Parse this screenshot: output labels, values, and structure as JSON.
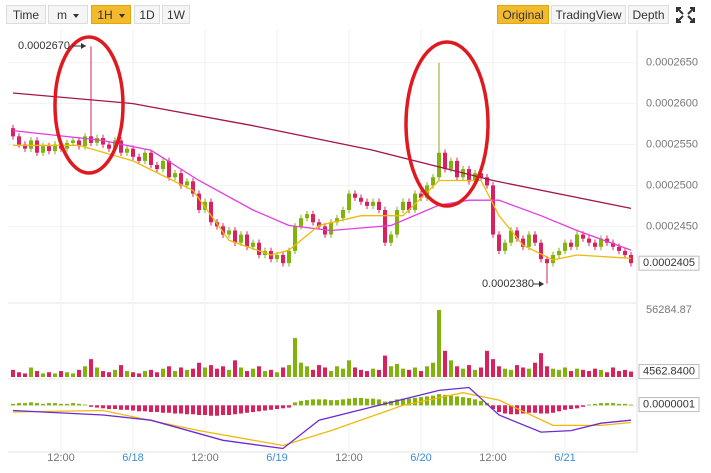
{
  "toolbar": {
    "left": [
      "Time",
      "m",
      "1H",
      "1D",
      "1W"
    ],
    "right": [
      "Original",
      "TradingView",
      "Depth"
    ]
  },
  "chart_data": {
    "type": "candlestick",
    "up_color": "#82b20c",
    "down_color": "#d9215e",
    "xlim": [
      -0.5,
      103.5
    ],
    "xticks": [
      {
        "value": 8,
        "label": "12:00"
      },
      {
        "value": 20,
        "label": "6/18"
      },
      {
        "value": 32,
        "label": "12:00"
      },
      {
        "value": 44,
        "label": "6/19"
      },
      {
        "value": 56,
        "label": "12:00"
      },
      {
        "value": 68,
        "label": "6/20"
      },
      {
        "value": 80,
        "label": "12:00"
      },
      {
        "value": 92,
        "label": "6/21"
      }
    ],
    "ylim": [
      0.000236,
      0.000269
    ],
    "yticks": [
      {
        "value": 0.000265,
        "label": "0.0002650"
      },
      {
        "value": 0.00026,
        "label": "0.0002600"
      },
      {
        "value": 0.000255,
        "label": "0.0002550"
      },
      {
        "value": 0.00025,
        "label": "0.0002500"
      },
      {
        "value": 0.000245,
        "label": "0.0002450"
      }
    ],
    "annotations": [
      "0.0002670",
      "0.0002380"
    ],
    "candles": [
      [
        0.000257,
        0.0002574,
        0.0002556,
        0.000256
      ],
      [
        0.000256,
        0.0002564,
        0.0002546,
        0.000255
      ],
      [
        0.000255,
        0.0002554,
        0.0002541,
        0.0002545
      ],
      [
        0.0002545,
        0.0002559,
        0.0002541,
        0.0002555
      ],
      [
        0.0002555,
        0.0002559,
        0.0002536,
        0.000254
      ],
      [
        0.000254,
        0.0002552,
        0.0002536,
        0.0002548
      ],
      [
        0.0002548,
        0.0002552,
        0.0002538,
        0.0002542
      ],
      [
        0.0002542,
        0.0002554,
        0.0002538,
        0.000255
      ],
      [
        0.000255,
        0.0002554,
        0.0002541,
        0.0002545
      ],
      [
        0.0002545,
        0.0002556,
        0.0002541,
        0.0002552
      ],
      [
        0.0002552,
        0.0002559,
        0.0002548,
        0.0002555
      ],
      [
        0.0002555,
        0.0002559,
        0.0002544,
        0.0002548
      ],
      [
        0.0002548,
        0.0002564,
        0.0002544,
        0.000256
      ],
      [
        0.000256,
        0.000267,
        0.0002548,
        0.0002552
      ],
      [
        0.0002552,
        0.0002562,
        0.0002548,
        0.0002558
      ],
      [
        0.0002558,
        0.0002562,
        0.0002546,
        0.000255
      ],
      [
        0.000255,
        0.0002554,
        0.0002541,
        0.0002545
      ],
      [
        0.0002545,
        0.0002559,
        0.0002541,
        0.0002555
      ],
      [
        0.0002555,
        0.0002559,
        0.0002536,
        0.000254
      ],
      [
        0.000254,
        0.0002549,
        0.0002536,
        0.0002545
      ],
      [
        0.0002545,
        0.0002549,
        0.0002531,
        0.0002535
      ],
      [
        0.0002535,
        0.0002539,
        0.0002526,
        0.000253
      ],
      [
        0.000253,
        0.0002544,
        0.0002526,
        0.000254
      ],
      [
        0.000254,
        0.0002544,
        0.0002521,
        0.0002525
      ],
      [
        0.0002525,
        0.0002529,
        0.0002516,
        0.000252
      ],
      [
        0.000252,
        0.0002534,
        0.0002516,
        0.000253
      ],
      [
        0.000253,
        0.0002534,
        0.0002506,
        0.000251
      ],
      [
        0.000251,
        0.0002519,
        0.0002506,
        0.0002515
      ],
      [
        0.0002515,
        0.0002519,
        0.0002496,
        0.00025
      ],
      [
        0.00025,
        0.0002509,
        0.0002496,
        0.0002505
      ],
      [
        0.0002505,
        0.0002509,
        0.0002486,
        0.000249
      ],
      [
        0.000249,
        0.0002494,
        0.0002466,
        0.000247
      ],
      [
        0.000247,
        0.0002484,
        0.0002466,
        0.000248
      ],
      [
        0.000248,
        0.0002484,
        0.0002451,
        0.0002455
      ],
      [
        0.0002455,
        0.0002459,
        0.0002446,
        0.000245
      ],
      [
        0.000245,
        0.0002454,
        0.0002436,
        0.000244
      ],
      [
        0.000244,
        0.0002449,
        0.0002436,
        0.0002445
      ],
      [
        0.0002445,
        0.0002449,
        0.0002426,
        0.000243
      ],
      [
        0.000243,
        0.0002444,
        0.0002426,
        0.000244
      ],
      [
        0.000244,
        0.0002444,
        0.0002421,
        0.0002425
      ],
      [
        0.0002425,
        0.0002434,
        0.0002421,
        0.000243
      ],
      [
        0.000243,
        0.0002434,
        0.0002411,
        0.0002415
      ],
      [
        0.0002415,
        0.0002424,
        0.0002411,
        0.000242
      ],
      [
        0.000242,
        0.0002424,
        0.0002406,
        0.000241
      ],
      [
        0.000241,
        0.0002419,
        0.0002406,
        0.0002415
      ],
      [
        0.0002415,
        0.0002419,
        0.0002401,
        0.0002405
      ],
      [
        0.0002405,
        0.0002424,
        0.0002401,
        0.000242
      ],
      [
        0.000242,
        0.0002454,
        0.0002416,
        0.000245
      ],
      [
        0.000245,
        0.0002464,
        0.0002446,
        0.000246
      ],
      [
        0.000246,
        0.0002469,
        0.0002456,
        0.0002465
      ],
      [
        0.0002465,
        0.0002469,
        0.0002451,
        0.0002455
      ],
      [
        0.0002455,
        0.0002459,
        0.0002446,
        0.000245
      ],
      [
        0.000245,
        0.0002454,
        0.0002436,
        0.000244
      ],
      [
        0.000244,
        0.0002459,
        0.0002436,
        0.0002455
      ],
      [
        0.0002455,
        0.0002464,
        0.0002451,
        0.000246
      ],
      [
        0.000246,
        0.0002474,
        0.0002456,
        0.000247
      ],
      [
        0.000247,
        0.0002494,
        0.0002466,
        0.000249
      ],
      [
        0.000249,
        0.0002494,
        0.0002481,
        0.0002485
      ],
      [
        0.0002485,
        0.0002489,
        0.0002476,
        0.000248
      ],
      [
        0.000248,
        0.0002484,
        0.0002471,
        0.0002475
      ],
      [
        0.0002475,
        0.0002484,
        0.0002471,
        0.000248
      ],
      [
        0.000248,
        0.0002484,
        0.0002466,
        0.000247
      ],
      [
        0.000247,
        0.0002474,
        0.0002426,
        0.000243
      ],
      [
        0.000243,
        0.0002444,
        0.0002426,
        0.000244
      ],
      [
        0.000244,
        0.0002474,
        0.0002436,
        0.000247
      ],
      [
        0.000247,
        0.0002484,
        0.0002466,
        0.000248
      ],
      [
        0.000248,
        0.0002484,
        0.0002466,
        0.000247
      ],
      [
        0.000247,
        0.0002494,
        0.0002466,
        0.000249
      ],
      [
        0.000249,
        0.0002494,
        0.0002481,
        0.0002485
      ],
      [
        0.0002485,
        0.0002504,
        0.0002481,
        0.00025
      ],
      [
        0.00025,
        0.0002514,
        0.0002496,
        0.000251
      ],
      [
        0.000251,
        0.000265,
        0.0002506,
        0.000254
      ],
      [
        0.000254,
        0.0002544,
        0.0002516,
        0.000252
      ],
      [
        0.000252,
        0.0002534,
        0.0002516,
        0.000253
      ],
      [
        0.000253,
        0.0002534,
        0.0002506,
        0.000251
      ],
      [
        0.000251,
        0.0002524,
        0.0002506,
        0.000252
      ],
      [
        0.000252,
        0.0002524,
        0.0002501,
        0.0002505
      ],
      [
        0.0002505,
        0.0002519,
        0.0002501,
        0.0002515
      ],
      [
        0.0002515,
        0.0002519,
        0.0002506,
        0.000251
      ],
      [
        0.000251,
        0.0002514,
        0.0002496,
        0.00025
      ],
      [
        0.00025,
        0.0002504,
        0.0002436,
        0.000244
      ],
      [
        0.000244,
        0.0002444,
        0.0002416,
        0.000242
      ],
      [
        0.000242,
        0.0002434,
        0.0002416,
        0.000243
      ],
      [
        0.000243,
        0.0002449,
        0.0002426,
        0.0002445
      ],
      [
        0.0002445,
        0.0002449,
        0.0002431,
        0.0002435
      ],
      [
        0.0002435,
        0.0002439,
        0.0002421,
        0.0002425
      ],
      [
        0.0002425,
        0.0002444,
        0.0002421,
        0.000244
      ],
      [
        0.000244,
        0.0002444,
        0.0002426,
        0.000243
      ],
      [
        0.000243,
        0.0002434,
        0.0002406,
        0.000241
      ],
      [
        0.000241,
        0.0002414,
        0.000238,
        0.0002405
      ],
      [
        0.0002405,
        0.0002419,
        0.0002401,
        0.0002415
      ],
      [
        0.0002415,
        0.0002424,
        0.0002411,
        0.000242
      ],
      [
        0.000242,
        0.0002434,
        0.0002416,
        0.000243
      ],
      [
        0.000243,
        0.0002434,
        0.0002421,
        0.0002425
      ],
      [
        0.0002425,
        0.0002444,
        0.0002421,
        0.000244
      ],
      [
        0.000244,
        0.0002444,
        0.0002431,
        0.0002435
      ],
      [
        0.0002435,
        0.0002439,
        0.0002426,
        0.000243
      ],
      [
        0.000243,
        0.0002434,
        0.0002421,
        0.0002425
      ],
      [
        0.0002425,
        0.0002439,
        0.0002421,
        0.0002435
      ],
      [
        0.0002435,
        0.0002439,
        0.0002426,
        0.000243
      ],
      [
        0.000243,
        0.0002434,
        0.0002421,
        0.0002425
      ],
      [
        0.0002425,
        0.0002429,
        0.0002416,
        0.000242
      ],
      [
        0.000242,
        0.0002424,
        0.0002411,
        0.0002415
      ],
      [
        0.0002415,
        0.0002419,
        0.0002401,
        0.0002405
      ]
    ],
    "lines": [
      {
        "color": "#a3154f",
        "x": [
          0,
          20,
          40,
          60,
          80,
          103
        ],
        "values": [
          0.0002613,
          0.00026,
          0.0002573,
          0.0002543,
          0.0002506,
          0.0002472
        ]
      },
      {
        "color": "#e23de0",
        "x": [
          0,
          15,
          23,
          31,
          40,
          46,
          53,
          63,
          71,
          76,
          81,
          88,
          94,
          103
        ],
        "values": [
          0.0002567,
          0.0002555,
          0.0002543,
          0.0002506,
          0.000247,
          0.0002451,
          0.0002445,
          0.0002451,
          0.0002476,
          0.0002482,
          0.0002482,
          0.0002463,
          0.0002445,
          0.0002421
        ]
      },
      {
        "color": "#f0b90b",
        "x": [
          0,
          11,
          20,
          30,
          36,
          43,
          46,
          51,
          58,
          65,
          71,
          78,
          81,
          85,
          90,
          94,
          103
        ],
        "values": [
          0.0002549,
          0.0002549,
          0.000253,
          0.0002494,
          0.0002433,
          0.0002415,
          0.0002421,
          0.0002451,
          0.0002463,
          0.0002463,
          0.0002506,
          0.0002506,
          0.0002463,
          0.0002427,
          0.0002409,
          0.0002415,
          0.0002411
        ]
      }
    ],
    "volume": {
      "ylim": [
        0,
        56284.87
      ],
      "yticks": [
        56284.87
      ],
      "last_label": "4562.8400",
      "values": [
        6000,
        4000,
        3000,
        8000,
        5000,
        3000,
        4000,
        3000,
        5000,
        4000,
        3000,
        6000,
        9000,
        15000,
        8000,
        5000,
        4000,
        6000,
        10000,
        5000,
        4000,
        3000,
        5000,
        6000,
        4000,
        7000,
        9000,
        5000,
        8000,
        6000,
        7000,
        12000,
        8000,
        10000,
        7000,
        9000,
        6000,
        14000,
        8000,
        5000,
        7000,
        9000,
        5000,
        6000,
        4000,
        8000,
        10000,
        32700,
        12000,
        9000,
        6000,
        10000,
        8000,
        5000,
        9000,
        7000,
        14000,
        8000,
        6000,
        5000,
        7000,
        6000,
        18000,
        9000,
        11000,
        7000,
        6000,
        8000,
        5000,
        9000,
        12000,
        56284.87,
        22000,
        14000,
        9000,
        7000,
        10000,
        6000,
        8000,
        22000,
        15000,
        9000,
        7000,
        6000,
        10000,
        8000,
        7000,
        12000,
        20000,
        9000,
        7000,
        6000,
        8000,
        5000,
        7000,
        6000,
        5000,
        7000,
        6000,
        4000,
        8000,
        5000,
        6000,
        4562.84
      ]
    },
    "macd": {
      "ylim": [
        -6e-07,
        3e-07
      ],
      "last_label": "0.0000001",
      "histogram": [
        2e-08,
        3e-08,
        3e-08,
        4e-08,
        3e-08,
        2e-08,
        3e-08,
        3e-08,
        2e-08,
        2e-08,
        3e-08,
        2e-08,
        1e-08,
        -2e-08,
        -3e-08,
        -4e-08,
        -5e-08,
        -5e-08,
        -6e-08,
        -6e-08,
        -7e-08,
        -8e-08,
        -8e-08,
        -9e-08,
        -9e-08,
        -1e-07,
        -1e-07,
        -1.1e-07,
        -1.1e-07,
        -1.2e-07,
        -1.2e-07,
        -1.3e-07,
        -1.3e-07,
        -1.4e-07,
        -1.4e-07,
        -1.3e-07,
        -1.3e-07,
        -1.2e-07,
        -1.1e-07,
        -1e-07,
        -9e-08,
        -8e-08,
        -7e-08,
        -6e-08,
        -5e-08,
        -4e-08,
        -3e-08,
        4e-08,
        6e-08,
        7e-08,
        8e-08,
        8e-08,
        8e-08,
        7e-08,
        7e-08,
        8e-08,
        9e-08,
        1e-07,
        1e-07,
        9e-08,
        9e-08,
        8e-08,
        5e-08,
        6e-08,
        8e-08,
        9e-08,
        9e-08,
        1e-07,
        1.1e-07,
        1.2e-07,
        1.3e-07,
        1.5e-07,
        1.4e-07,
        1.3e-07,
        1.2e-07,
        1.1e-07,
        1e-07,
        8e-08,
        6e-08,
        3e-08,
        -5e-08,
        -9e-08,
        -1.1e-07,
        -1.2e-07,
        -1.2e-07,
        -1.1e-07,
        -1e-07,
        -1e-07,
        -1.1e-07,
        -1.1e-07,
        -1e-07,
        -8e-08,
        -6e-08,
        -5e-08,
        -4e-08,
        -2e-08,
        1e-08,
        2e-08,
        3e-08,
        3e-08,
        3e-08,
        2e-08,
        2e-08,
        1e-08
      ],
      "lines": [
        {
          "color": "#f0b90b",
          "x": [
            0,
            15,
            31,
            45,
            53,
            65,
            75,
            81,
            90,
            98,
            103
          ],
          "values": [
            -9e-08,
            -7e-08,
            -3.4e-07,
            -5.4e-07,
            -3.4e-07,
            0,
            1.7e-07,
            7e-08,
            -2.7e-07,
            -2.7e-07,
            -2.3e-07
          ]
        },
        {
          "color": "#6a2bd1",
          "x": [
            0,
            15,
            23,
            35,
            45,
            51,
            61,
            71,
            76,
            81,
            88,
            93,
            98,
            103
          ],
          "values": [
            -7e-08,
            -1.3e-07,
            -2e-07,
            -4.7e-07,
            -5.8e-07,
            -2e-07,
            0,
            2e-07,
            2.4e-07,
            -1.3e-07,
            -3.6e-07,
            -3.4e-07,
            -2.4e-07,
            -2e-07
          ]
        }
      ]
    }
  }
}
